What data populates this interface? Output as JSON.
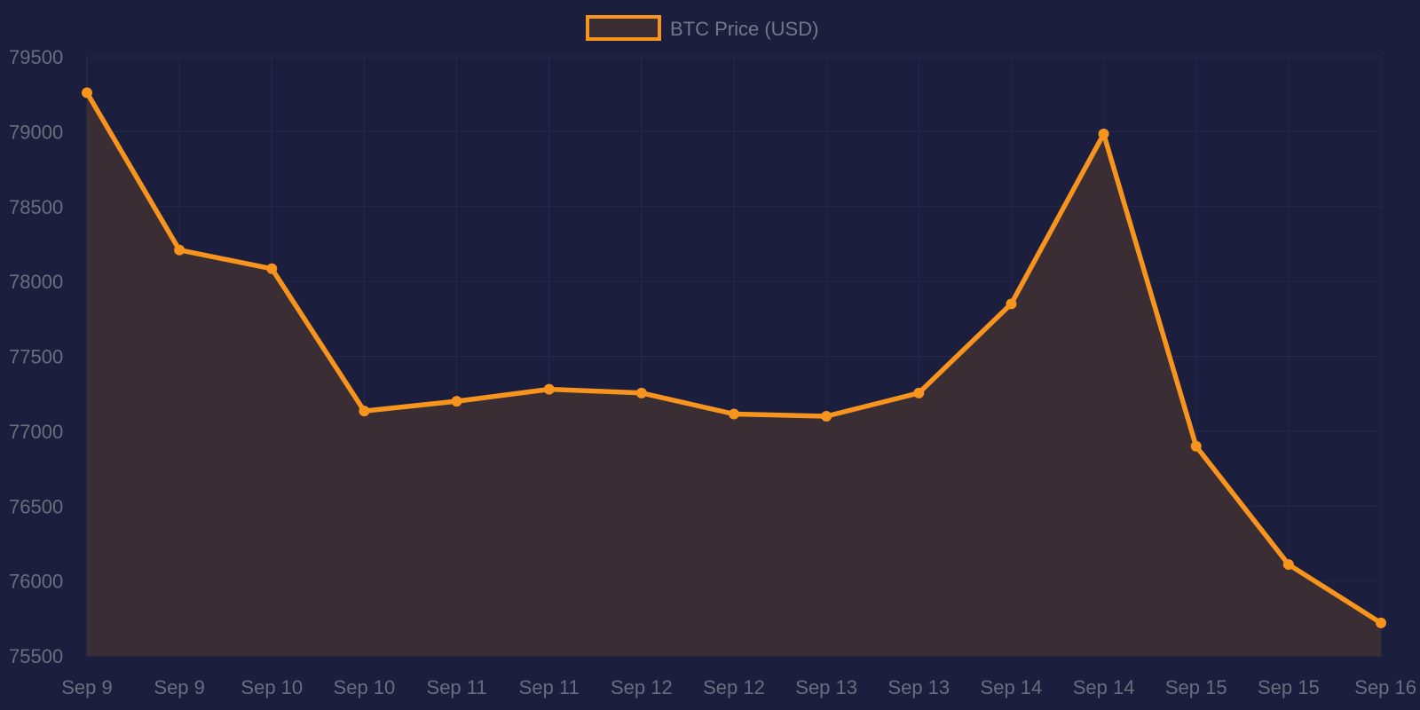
{
  "chart_data": {
    "type": "area",
    "x": [
      "Sep 9",
      "Sep 9",
      "Sep 10",
      "Sep 10",
      "Sep 11",
      "Sep 11",
      "Sep 12",
      "Sep 12",
      "Sep 13",
      "Sep 13",
      "Sep 14",
      "Sep 14",
      "Sep 15",
      "Sep 15",
      "Sep 16"
    ],
    "series": [
      {
        "name": "BTC Price (USD)",
        "values": [
          79260,
          78210,
          78085,
          77135,
          77200,
          77280,
          77255,
          77115,
          77100,
          77255,
          77850,
          78985,
          76900,
          76110,
          75720
        ]
      }
    ],
    "ylim": [
      75500,
      79500
    ],
    "yticks": [
      75500,
      76000,
      76500,
      77000,
      77500,
      78000,
      78500,
      79000,
      79500
    ],
    "grid": true,
    "legend_position": "top-center",
    "colors": {
      "line": "#f7941d",
      "fill": "#3b2d34",
      "background": "#1b1e3c",
      "grid": "#262949",
      "text": "#6b6d7e"
    }
  }
}
